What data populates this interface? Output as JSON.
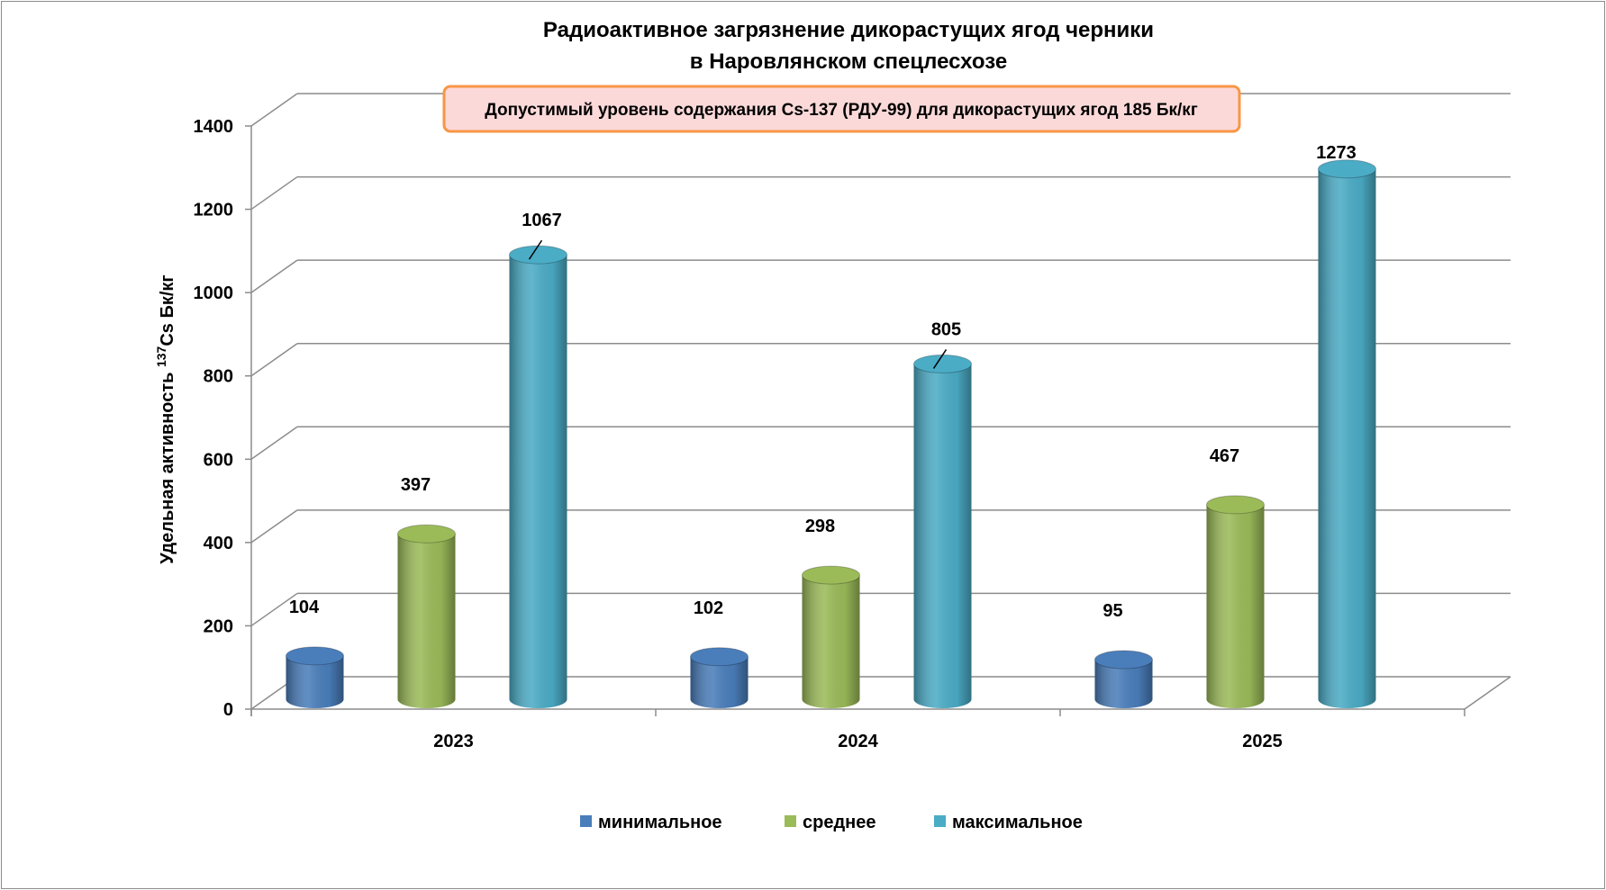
{
  "chart_data": {
    "type": "bar",
    "title": [
      "Радиоактивное загрязнение дикорастущих ягод  черники",
      "в Наровлянском спецлесхозе"
    ],
    "annotation": "Допустимый уровень содержания Cs-137 (РДУ-99) для дикорастущих ягод 185 Бк/кг",
    "ylabel": {
      "pre": "Удельная активность ",
      "sup": "137",
      "post": "Cs  Бк/кг"
    },
    "xlabel": "",
    "ylim": [
      0,
      1400
    ],
    "yticks": [
      0,
      200,
      400,
      600,
      800,
      1000,
      1200,
      1400
    ],
    "categories": [
      "2023",
      "2024",
      "2025"
    ],
    "series": [
      {
        "name": "минимальное",
        "color": "#4a7ebb",
        "values": [
          104,
          102,
          95
        ]
      },
      {
        "name": "среднее",
        "color": "#9bbb59",
        "values": [
          397,
          298,
          467
        ]
      },
      {
        "name": "максимальное",
        "color": "#4bacc6",
        "values": [
          1067,
          805,
          1273
        ]
      }
    ],
    "grid": true,
    "legend": "bottom"
  }
}
